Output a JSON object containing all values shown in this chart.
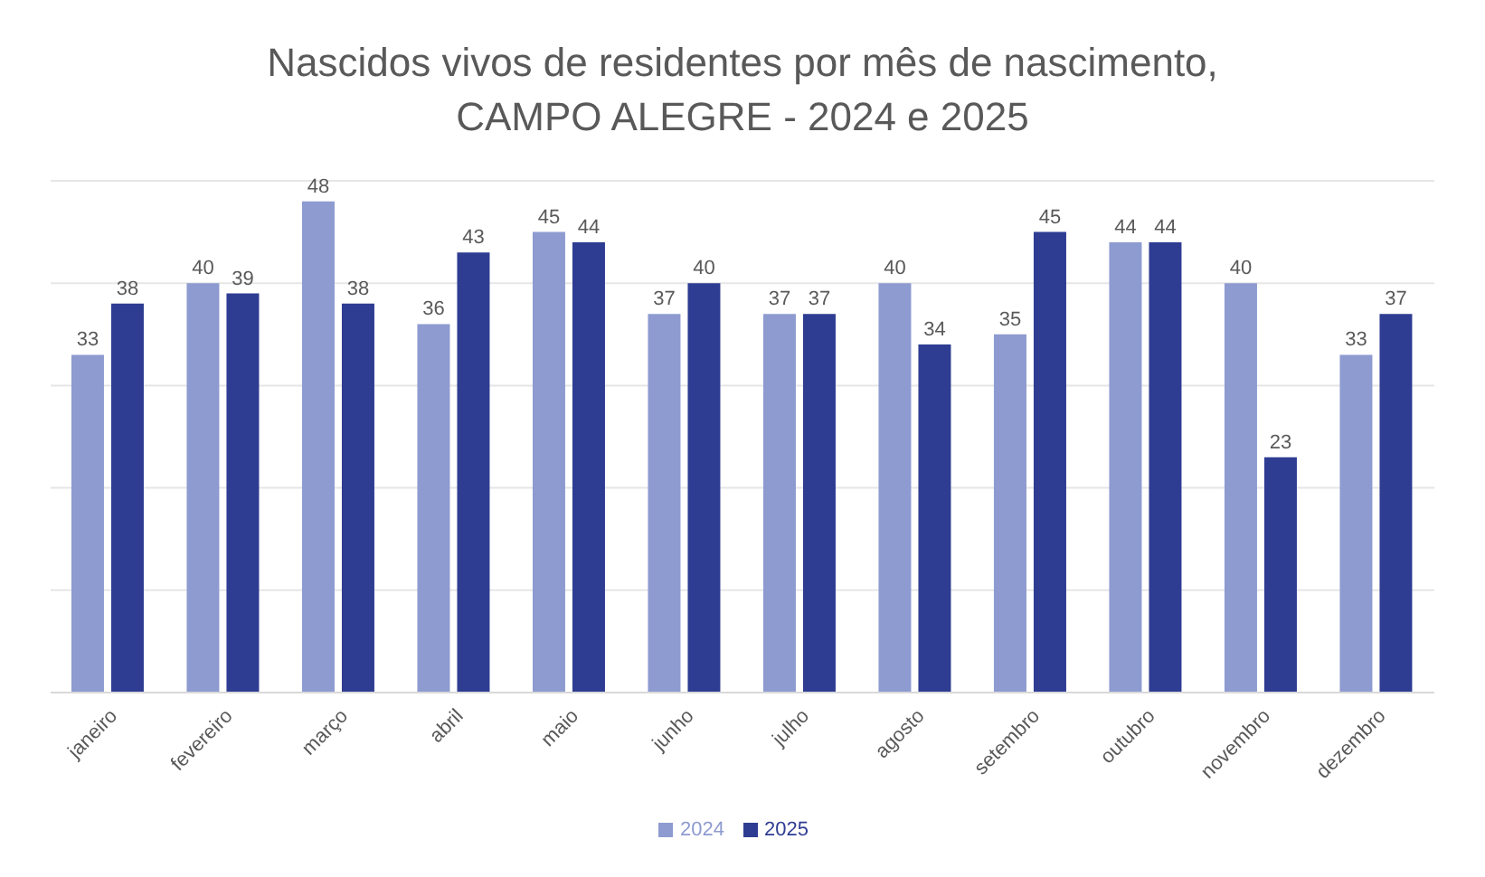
{
  "chart_data": {
    "type": "bar",
    "title": "Nascidos vivos de residentes por mês de nascimento, CAMPO ALEGRE - 2024 e 2025",
    "categories": [
      "janeiro",
      "fevereiro",
      "março",
      "abril",
      "maio",
      "junho",
      "julho",
      "agosto",
      "setembro",
      "outubro",
      "novembro",
      "dezembro"
    ],
    "series": [
      {
        "name": "2024",
        "color": "#8e9bd0",
        "values": [
          33,
          40,
          48,
          36,
          45,
          37,
          37,
          40,
          35,
          44,
          40,
          33
        ]
      },
      {
        "name": "2025",
        "color": "#2e3d92",
        "values": [
          38,
          39,
          38,
          43,
          44,
          40,
          37,
          34,
          45,
          44,
          23,
          37
        ]
      }
    ],
    "ylim": [
      0,
      50
    ],
    "yticks": [
      0,
      10,
      20,
      30,
      40,
      50
    ],
    "tick_labels": "x",
    "grid": "y",
    "legend": "bottom",
    "data_labels": true
  }
}
